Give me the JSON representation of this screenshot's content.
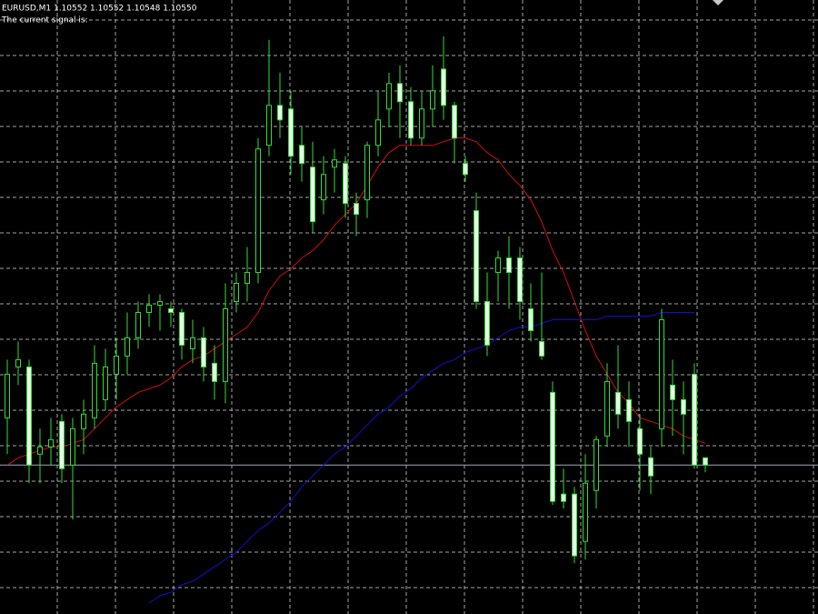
{
  "chart_data": {
    "type": "candlestick",
    "title": "EURUSD,M1  1.10552 1.10552 1.10548 1.10550",
    "subtitle": "The current signal is:",
    "ylim": [
      1.10509,
      1.10678
    ],
    "grid": true,
    "bull_color": "#000000",
    "bear_color": "#e8ffe8",
    "wick_color": "#33dd33",
    "bid_line_color": "#a0a8b8",
    "open": [
      1.10563,
      1.10577,
      1.10577,
      1.10553,
      1.10555,
      1.10562,
      1.1055,
      1.1056,
      1.10563,
      1.10568,
      1.10575,
      1.1058,
      1.10585,
      1.10592,
      1.10594,
      1.10593,
      1.10592,
      1.10582,
      1.10585,
      1.10578,
      1.10573,
      1.10595,
      1.106,
      1.10603,
      1.10638,
      1.10649,
      1.10648,
      1.10638,
      1.10632,
      1.10623,
      1.10632,
      1.10633,
      1.10622,
      1.10623,
      1.10638,
      1.10648,
      1.10655,
      1.1065,
      1.1064,
      1.10648,
      1.10659,
      1.10649,
      1.10633,
      1.1062,
      1.10595,
      1.10603,
      1.10607,
      1.10607,
      1.10593,
      1.10584,
      1.1057,
      1.10542,
      1.10542,
      1.10529,
      1.10543,
      1.10558,
      1.1057,
      1.10568,
      1.1056,
      1.10552,
      1.1056,
      1.10572,
      1.10568,
      1.10575,
      1.10552
    ],
    "close": [
      1.10575,
      1.10579,
      1.1055,
      1.10555,
      1.10557,
      1.10549,
      1.1056,
      1.10564,
      1.10578,
      1.10577,
      1.1058,
      1.10585,
      1.10592,
      1.10594,
      1.10595,
      1.10592,
      1.10583,
      1.10585,
      1.10577,
      1.10573,
      1.10593,
      1.106,
      1.10603,
      1.10637,
      1.10649,
      1.10645,
      1.10635,
      1.10633,
      1.10617,
      1.1063,
      1.10634,
      1.10622,
      1.10619,
      1.10638,
      1.10645,
      1.10655,
      1.1065,
      1.1064,
      1.10648,
      1.10653,
      1.10649,
      1.1064,
      1.1063,
      1.10595,
      1.10583,
      1.10607,
      1.10603,
      1.10595,
      1.10587,
      1.1058,
      1.1054,
      1.1054,
      1.10525,
      1.10545,
      1.10557,
      1.10573,
      1.10564,
      1.10562,
      1.10553,
      1.10547,
      1.1059,
      1.10568,
      1.10564,
      1.1055,
      1.1055
    ],
    "high": [
      1.10579,
      1.10584,
      1.10579,
      1.1056,
      1.10563,
      1.10564,
      1.10563,
      1.10568,
      1.10583,
      1.10582,
      1.10585,
      1.10592,
      1.10595,
      1.10597,
      1.10597,
      1.10595,
      1.10593,
      1.1059,
      1.10588,
      1.10583,
      1.106,
      1.10603,
      1.1061,
      1.1064,
      1.10667,
      1.10658,
      1.10653,
      1.10643,
      1.10639,
      1.10635,
      1.10637,
      1.10635,
      1.10625,
      1.10639,
      1.10653,
      1.10658,
      1.1066,
      1.10654,
      1.10653,
      1.1066,
      1.10668,
      1.1065,
      1.10635,
      1.10625,
      1.10603,
      1.10609,
      1.10613,
      1.1061,
      1.106,
      1.10603,
      1.10573,
      1.10549,
      1.10544,
      1.10553,
      1.10558,
      1.10578,
      1.10583,
      1.10573,
      1.10564,
      1.10555,
      1.10593,
      1.10579,
      1.10573,
      1.10578,
      1.10552
    ],
    "low": [
      1.10553,
      1.10572,
      1.10545,
      1.10545,
      1.1055,
      1.10545,
      1.10535,
      1.10553,
      1.1056,
      1.10565,
      1.10568,
      1.10575,
      1.10582,
      1.10588,
      1.10587,
      1.10588,
      1.10579,
      1.10578,
      1.10573,
      1.10568,
      1.10567,
      1.10592,
      1.10595,
      1.106,
      1.10635,
      1.1064,
      1.1063,
      1.10628,
      1.10614,
      1.10619,
      1.10625,
      1.10618,
      1.10613,
      1.10618,
      1.10635,
      1.10643,
      1.1064,
      1.10638,
      1.10638,
      1.10643,
      1.10645,
      1.10633,
      1.10628,
      1.10593,
      1.1058,
      1.10595,
      1.10593,
      1.1059,
      1.10584,
      1.10579,
      1.10539,
      1.10538,
      1.10523,
      1.10524,
      1.10538,
      1.10555,
      1.1056,
      1.10555,
      1.10543,
      1.10542,
      1.10555,
      1.10558,
      1.10553,
      1.10549,
      1.10548
    ],
    "series": [
      {
        "color": "#d01010",
        "values": [
          1.1055,
          1.10552,
          1.10553,
          1.10554,
          1.10555,
          1.10555,
          1.10556,
          1.10557,
          1.1056,
          1.10563,
          1.10566,
          1.10568,
          1.1057,
          1.10571,
          1.10572,
          1.10574,
          1.10577,
          1.10579,
          1.1058,
          1.10582,
          1.10584,
          1.10586,
          1.10588,
          1.10592,
          1.10598,
          1.10602,
          1.10604,
          1.10607,
          1.10609,
          1.10612,
          1.10616,
          1.10619,
          1.10622,
          1.10627,
          1.10632,
          1.10636,
          1.10638,
          1.10638,
          1.10638,
          1.10638,
          1.10639,
          1.1064,
          1.1064,
          1.10639,
          1.10636,
          1.10634,
          1.1063,
          1.10627,
          1.10623,
          1.10617,
          1.10609,
          1.10603,
          1.10595,
          1.10587,
          1.1058,
          1.10575,
          1.1057,
          1.10567,
          1.10563,
          1.10562,
          1.10561,
          1.1056,
          1.10558,
          1.10557,
          1.10556
        ]
      },
      {
        "color": "#1010c8",
        "values": [
          null,
          null,
          null,
          null,
          null,
          null,
          null,
          null,
          null,
          null,
          null,
          null,
          null,
          1.10512,
          1.10514,
          1.10515,
          1.10517,
          1.10518,
          1.1052,
          1.10522,
          1.10524,
          1.10526,
          1.10529,
          1.10532,
          1.10534,
          1.10537,
          1.1054,
          1.10544,
          1.10547,
          1.1055,
          1.10553,
          1.10555,
          1.10558,
          1.10561,
          1.10564,
          1.10566,
          1.10569,
          1.10571,
          1.10574,
          1.10576,
          1.10578,
          1.10579,
          1.10581,
          1.10582,
          1.10583,
          1.10585,
          1.10587,
          1.10588,
          1.10588,
          1.10589,
          1.1059,
          1.1059,
          1.1059,
          1.1059,
          1.1059,
          1.10591,
          1.10591,
          1.10591,
          1.10591,
          1.10591,
          1.10592,
          1.10592,
          1.10592,
          1.10592,
          null
        ]
      }
    ]
  }
}
